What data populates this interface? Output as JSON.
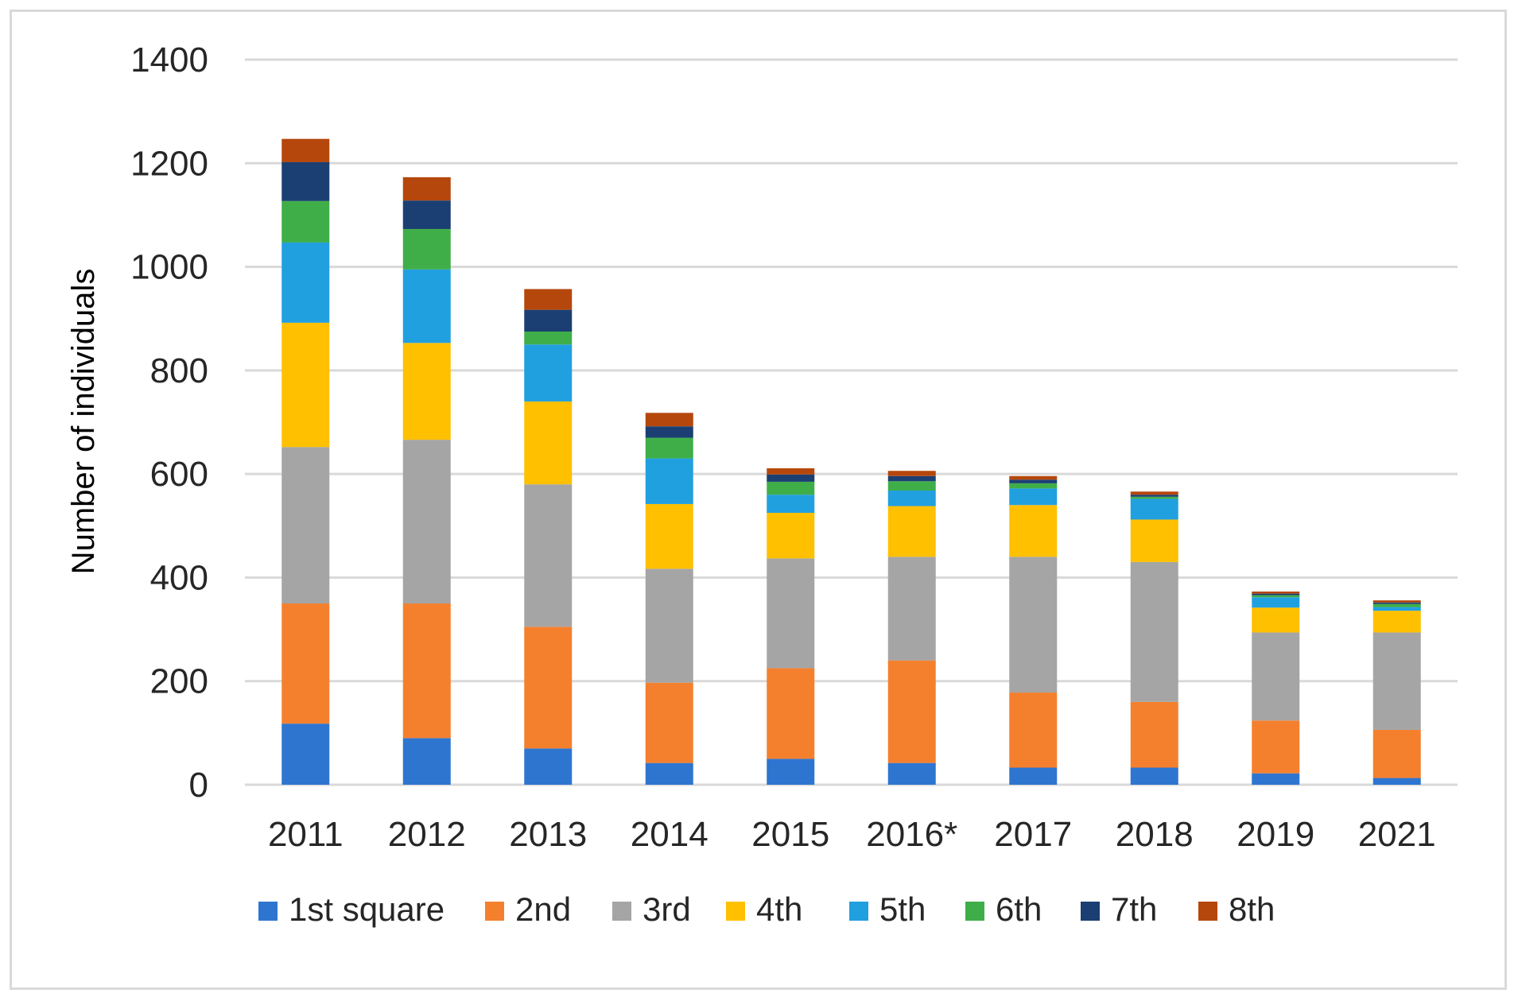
{
  "chart_data": {
    "type": "bar",
    "stacked": true,
    "title": "",
    "xlabel": "",
    "ylabel": "Number of individuals",
    "ylim": [
      0,
      1400
    ],
    "yticks": [
      0,
      200,
      400,
      600,
      800,
      1000,
      1200,
      1400
    ],
    "grid": true,
    "legend_position": "bottom",
    "categories": [
      "2011",
      "2012",
      "2013",
      "2014",
      "2015",
      "2016*",
      "2017",
      "2018",
      "2019",
      "2021"
    ],
    "series": [
      {
        "name": "1st square",
        "color": "#2e75d0",
        "values": [
          118,
          90,
          70,
          42,
          50,
          42,
          33,
          33,
          22,
          13
        ]
      },
      {
        "name": "2nd",
        "color": "#f4802e",
        "values": [
          232,
          260,
          235,
          155,
          175,
          198,
          145,
          127,
          102,
          93
        ]
      },
      {
        "name": "3rd",
        "color": "#a5a5a5",
        "values": [
          302,
          316,
          275,
          220,
          212,
          200,
          262,
          270,
          170,
          188
        ]
      },
      {
        "name": "4th",
        "color": "#ffc000",
        "values": [
          240,
          187,
          160,
          125,
          88,
          98,
          100,
          82,
          48,
          42
        ]
      },
      {
        "name": "5th",
        "color": "#21a0e0",
        "values": [
          155,
          142,
          110,
          88,
          35,
          30,
          32,
          40,
          20,
          7
        ]
      },
      {
        "name": "6th",
        "color": "#3fae49",
        "values": [
          80,
          78,
          25,
          40,
          25,
          18,
          10,
          4,
          4,
          6
        ]
      },
      {
        "name": "7th",
        "color": "#1b3f73",
        "values": [
          75,
          55,
          42,
          22,
          14,
          10,
          7,
          4,
          3,
          3
        ]
      },
      {
        "name": "8th",
        "color": "#b5470c",
        "values": [
          45,
          45,
          40,
          26,
          12,
          10,
          7,
          6,
          4,
          4
        ]
      }
    ]
  }
}
